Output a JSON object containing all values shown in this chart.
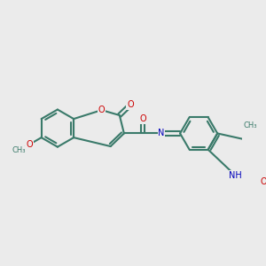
{
  "bg_color": "#ebebeb",
  "bond_color": "#3a7a6a",
  "bond_width": 1.5,
  "atom_colors": {
    "O": "#cc0000",
    "N": "#0000bb",
    "C": "#3a7a6a"
  },
  "font_size": 8,
  "figsize": [
    3.0,
    3.0
  ],
  "dpi": 100,
  "xlim": [
    0,
    10
  ],
  "ylim": [
    0,
    10
  ]
}
